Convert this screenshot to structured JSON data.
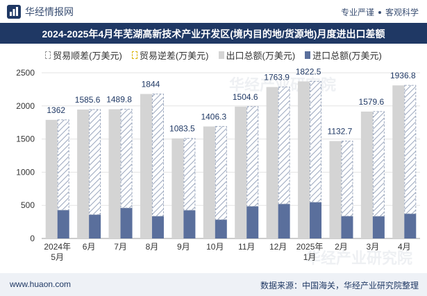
{
  "header": {
    "brand": "华经情报网",
    "slogan_a": "专业严谨",
    "slogan_b": "客观科学"
  },
  "title": "2024-2025年4月年芜湖高新技术产业开发区(境内目的地/货源地)月度进出口差额",
  "legend": {
    "surplus": "贸易顺差(万美元)",
    "deficit": "贸易逆差(万美元)",
    "export": "出口总额(万美元)",
    "import": "进口总额(万美元)"
  },
  "colors": {
    "title_bg": "#1f3864",
    "export": "#d4d4d4",
    "import": "#5a6f9c",
    "surplus_hatch": "#9aa6bd",
    "label": "#1f3864"
  },
  "footer": {
    "site": "www.huaon.com",
    "source": "数据来源：中国海关，华经产业研究院整理"
  },
  "watermark": "华经产业研究院",
  "chart_data": {
    "type": "bar",
    "categories": [
      "2024年\n5月",
      "6月",
      "7月",
      "8月",
      "9月",
      "10月",
      "11月",
      "12月",
      "2025年\n1月",
      "2月",
      "3月",
      "4月"
    ],
    "ylim": [
      0,
      2500
    ],
    "yticks": [
      0,
      500,
      1000,
      1500,
      2000,
      2500
    ],
    "series": [
      {
        "name": "出口总额(万美元)",
        "values": [
          1790,
          1945,
          1950,
          2180,
          1510,
          1690,
          1990,
          2285,
          2370,
          1470,
          1915,
          2310
        ]
      },
      {
        "name": "进口总额(万美元)",
        "values": [
          428,
          359,
          460,
          336,
          426,
          284,
          485,
          521,
          547,
          337,
          335,
          373
        ]
      },
      {
        "name": "贸易顺差(万美元)",
        "values": [
          1362,
          1585.6,
          1489.8,
          1844,
          1083.5,
          1406.3,
          1504.6,
          1763.9,
          1822.5,
          1132.7,
          1579.6,
          1936.8
        ]
      }
    ],
    "data_labels": [
      "1362",
      "1585.6",
      "1489.8",
      "1844",
      "1083.5",
      "1406.3",
      "1504.6",
      "1763.9",
      "1822.5",
      "1132.7",
      "1579.6",
      "1936.8"
    ]
  }
}
